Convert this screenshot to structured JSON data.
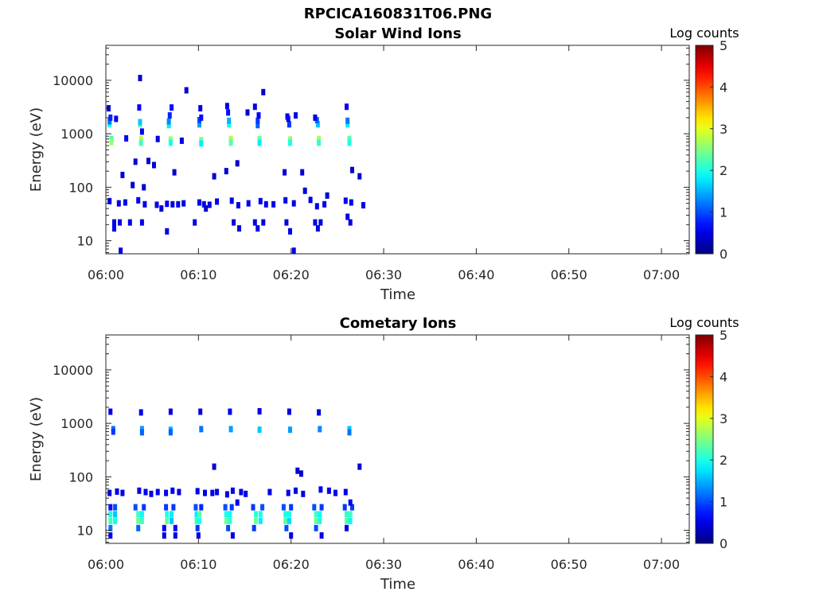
{
  "figure_title": "RPCICA160831T06.PNG",
  "chart_data": [
    {
      "type": "heatmap",
      "title": "Solar Wind Ions",
      "xlabel": "Time",
      "ylabel": "Energy (eV)",
      "y_scale": "log",
      "xlim": [
        "06:00",
        "07:03"
      ],
      "ylim": [
        5.7,
        45000
      ],
      "x_ticks": [
        "06:00",
        "06:10",
        "06:20",
        "06:30",
        "06:40",
        "06:50",
        "07:00"
      ],
      "y_ticks": [
        10,
        100,
        1000,
        10000
      ],
      "y_tick_labels": [
        "10",
        "100",
        "1000",
        "10000"
      ],
      "colorbar": {
        "label": "Log counts",
        "min": 0,
        "max": 5,
        "ticks": [
          "0",
          "1",
          "2",
          "3",
          "4",
          "5"
        ],
        "colormap": "jet"
      },
      "points": [
        [
          0.6,
          800,
          2.2
        ],
        [
          0.6,
          700,
          2.6
        ],
        [
          0.4,
          1500,
          2.0
        ],
        [
          0.4,
          1700,
          1.2
        ],
        [
          0.5,
          2000,
          0.8
        ],
        [
          0.3,
          3000,
          0.5
        ],
        [
          1.1,
          1900,
          0.6
        ],
        [
          3.8,
          800,
          2.8
        ],
        [
          3.8,
          680,
          2.2
        ],
        [
          3.7,
          1500,
          2.4
        ],
        [
          3.7,
          1650,
          1.6
        ],
        [
          3.6,
          3100,
          0.6
        ],
        [
          3.7,
          11000,
          0.4
        ],
        [
          3.9,
          1100,
          0.6
        ],
        [
          7.0,
          780,
          2.6
        ],
        [
          7.0,
          680,
          2.0
        ],
        [
          6.8,
          1450,
          1.8
        ],
        [
          6.8,
          1700,
          1.3
        ],
        [
          7.1,
          3100,
          0.7
        ],
        [
          6.9,
          2200,
          0.8
        ],
        [
          10.3,
          760,
          2.5
        ],
        [
          10.3,
          660,
          1.8
        ],
        [
          10.1,
          1500,
          1.4
        ],
        [
          10.1,
          1800,
          1.0
        ],
        [
          10.3,
          2000,
          0.7
        ],
        [
          10.2,
          3000,
          0.5
        ],
        [
          13.5,
          800,
          2.7
        ],
        [
          13.5,
          680,
          2.3
        ],
        [
          13.3,
          1500,
          2.0
        ],
        [
          13.3,
          1750,
          1.5
        ],
        [
          13.2,
          2500,
          0.7
        ],
        [
          13.1,
          3300,
          0.5
        ],
        [
          16.6,
          790,
          2.4
        ],
        [
          16.6,
          680,
          1.8
        ],
        [
          16.4,
          1450,
          1.1
        ],
        [
          16.4,
          1750,
          0.9
        ],
        [
          16.1,
          3200,
          0.5
        ],
        [
          16.5,
          2200,
          0.6
        ],
        [
          19.9,
          780,
          2.6
        ],
        [
          19.9,
          680,
          2.0
        ],
        [
          19.8,
          1500,
          0.9
        ],
        [
          19.6,
          2100,
          0.6
        ],
        [
          20.5,
          2200,
          0.5
        ],
        [
          19.7,
          1900,
          0.6
        ],
        [
          23.0,
          800,
          2.7
        ],
        [
          23.0,
          680,
          2.1
        ],
        [
          22.9,
          1500,
          1.6
        ],
        [
          22.8,
          1800,
          1.1
        ],
        [
          22.6,
          2000,
          0.5
        ],
        [
          26.3,
          800,
          2.3
        ],
        [
          26.3,
          680,
          2.0
        ],
        [
          26.1,
          1500,
          1.8
        ],
        [
          26.1,
          1750,
          1.2
        ],
        [
          26.0,
          3200,
          0.6
        ],
        [
          2.2,
          820,
          0.6
        ],
        [
          5.6,
          800,
          0.5
        ],
        [
          8.2,
          740,
          0.5
        ],
        [
          8.7,
          6500,
          0.4
        ],
        [
          17.0,
          6000,
          0.4
        ],
        [
          15.3,
          2500,
          0.4
        ],
        [
          3.2,
          300,
          0.4
        ],
        [
          4.6,
          310,
          0.4
        ],
        [
          5.2,
          260,
          0.4
        ],
        [
          7.4,
          190,
          0.4
        ],
        [
          11.7,
          160,
          0.4
        ],
        [
          13.0,
          200,
          0.4
        ],
        [
          14.2,
          280,
          0.4
        ],
        [
          19.3,
          190,
          0.4
        ],
        [
          21.2,
          190,
          0.4
        ],
        [
          26.6,
          210,
          0.4
        ],
        [
          27.4,
          160,
          0.4
        ],
        [
          2.9,
          110,
          0.4
        ],
        [
          4.1,
          100,
          0.4
        ],
        [
          1.8,
          170,
          0.4
        ],
        [
          21.5,
          86,
          0.4
        ],
        [
          23.9,
          70,
          0.4
        ],
        [
          6.0,
          40,
          0.4
        ],
        [
          10.8,
          40,
          0.4
        ],
        [
          0.4,
          55,
          0.5
        ],
        [
          1.4,
          50,
          0.5
        ],
        [
          2.1,
          52,
          0.5
        ],
        [
          3.5,
          57,
          0.5
        ],
        [
          4.2,
          48,
          0.5
        ],
        [
          5.5,
          47,
          0.5
        ],
        [
          6.6,
          49,
          0.5
        ],
        [
          7.2,
          48,
          0.5
        ],
        [
          7.8,
          48,
          0.5
        ],
        [
          8.4,
          50,
          0.5
        ],
        [
          10.1,
          52,
          0.5
        ],
        [
          10.6,
          48,
          0.5
        ],
        [
          11.2,
          47,
          0.5
        ],
        [
          12.0,
          54,
          0.5
        ],
        [
          13.6,
          56,
          0.5
        ],
        [
          14.3,
          46,
          0.5
        ],
        [
          15.4,
          50,
          0.5
        ],
        [
          16.7,
          55,
          0.5
        ],
        [
          17.3,
          48,
          0.5
        ],
        [
          18.1,
          48,
          0.5
        ],
        [
          19.4,
          57,
          0.5
        ],
        [
          20.3,
          50,
          0.5
        ],
        [
          22.1,
          58,
          0.5
        ],
        [
          22.8,
          44,
          0.5
        ],
        [
          23.6,
          48,
          0.5
        ],
        [
          25.9,
          56,
          0.5
        ],
        [
          26.5,
          52,
          0.5
        ],
        [
          27.8,
          46,
          0.5
        ],
        [
          0.9,
          22,
          0.5
        ],
        [
          0.9,
          17,
          0.5
        ],
        [
          1.5,
          22,
          0.5
        ],
        [
          2.6,
          22,
          0.5
        ],
        [
          3.9,
          22,
          0.5
        ],
        [
          6.6,
          15,
          0.5
        ],
        [
          9.6,
          22,
          0.5
        ],
        [
          13.8,
          22,
          0.5
        ],
        [
          14.4,
          17,
          0.5
        ],
        [
          16.1,
          22,
          0.5
        ],
        [
          16.4,
          17,
          0.5
        ],
        [
          17.0,
          22,
          0.5
        ],
        [
          19.5,
          22,
          0.5
        ],
        [
          19.9,
          15,
          0.5
        ],
        [
          22.6,
          22,
          0.5
        ],
        [
          22.9,
          17,
          0.5
        ],
        [
          23.2,
          22,
          0.5
        ],
        [
          26.1,
          28,
          0.5
        ],
        [
          26.4,
          22,
          0.5
        ],
        [
          1.6,
          6.5,
          0.5
        ],
        [
          20.3,
          6.5,
          0.5
        ]
      ]
    },
    {
      "type": "heatmap",
      "title": "Cometary Ions",
      "xlabel": "Time",
      "ylabel": "Energy (eV)",
      "y_scale": "log",
      "xlim": [
        "06:00",
        "07:03"
      ],
      "ylim": [
        5.7,
        45000
      ],
      "x_ticks": [
        "06:00",
        "06:10",
        "06:20",
        "06:30",
        "06:40",
        "06:50",
        "07:00"
      ],
      "y_ticks": [
        10,
        100,
        1000,
        10000
      ],
      "y_tick_labels": [
        "10",
        "100",
        "1000",
        "10000"
      ],
      "colorbar": {
        "label": "Log counts",
        "min": 0,
        "max": 5,
        "ticks": [
          "0",
          "1",
          "2",
          "3",
          "4",
          "5"
        ],
        "colormap": "jet"
      },
      "points": [
        [
          0.5,
          1650,
          0.5
        ],
        [
          0.8,
          780,
          1.2
        ],
        [
          0.8,
          700,
          0.9
        ],
        [
          3.8,
          1600,
          0.5
        ],
        [
          3.9,
          780,
          1.4
        ],
        [
          3.9,
          680,
          1.1
        ],
        [
          7.0,
          1650,
          0.5
        ],
        [
          7.0,
          760,
          1.5
        ],
        [
          7.0,
          680,
          1.1
        ],
        [
          10.2,
          1650,
          0.5
        ],
        [
          10.3,
          780,
          1.2
        ],
        [
          13.4,
          1650,
          0.6
        ],
        [
          13.5,
          780,
          1.4
        ],
        [
          16.6,
          1680,
          0.5
        ],
        [
          16.6,
          760,
          1.6
        ],
        [
          19.8,
          1650,
          0.5
        ],
        [
          19.9,
          760,
          1.4
        ],
        [
          23.0,
          1600,
          0.5
        ],
        [
          23.1,
          780,
          1.3
        ],
        [
          26.3,
          780,
          1.6
        ],
        [
          26.3,
          680,
          1.2
        ],
        [
          11.7,
          155,
          0.4
        ],
        [
          20.7,
          130,
          0.4
        ],
        [
          21.1,
          115,
          0.4
        ],
        [
          27.4,
          155,
          0.4
        ],
        [
          0.4,
          50,
          0.5
        ],
        [
          1.2,
          53,
          0.5
        ],
        [
          1.8,
          50,
          0.5
        ],
        [
          3.6,
          55,
          0.5
        ],
        [
          4.3,
          52,
          0.5
        ],
        [
          4.9,
          48,
          0.5
        ],
        [
          5.6,
          52,
          0.5
        ],
        [
          6.5,
          50,
          0.5
        ],
        [
          7.2,
          55,
          0.5
        ],
        [
          7.9,
          52,
          0.5
        ],
        [
          9.9,
          54,
          0.5
        ],
        [
          10.7,
          50,
          0.5
        ],
        [
          11.5,
          50,
          0.5
        ],
        [
          12.0,
          52,
          0.5
        ],
        [
          13.1,
          47,
          0.5
        ],
        [
          13.7,
          55,
          0.5
        ],
        [
          14.6,
          52,
          0.5
        ],
        [
          15.1,
          48,
          0.5
        ],
        [
          17.7,
          52,
          0.5
        ],
        [
          19.7,
          50,
          0.5
        ],
        [
          20.5,
          55,
          0.5
        ],
        [
          21.3,
          48,
          0.5
        ],
        [
          23.2,
          58,
          0.5
        ],
        [
          24.1,
          55,
          0.5
        ],
        [
          24.8,
          50,
          0.5
        ],
        [
          25.9,
          52,
          0.5
        ],
        [
          0.5,
          27,
          0.7
        ],
        [
          0.5,
          20,
          2.0
        ],
        [
          0.5,
          15,
          2.2
        ],
        [
          0.5,
          11,
          1.2
        ],
        [
          0.5,
          8,
          0.6
        ],
        [
          1.0,
          20,
          1.6
        ],
        [
          1.0,
          15,
          2.0
        ],
        [
          1.0,
          27,
          1.0
        ],
        [
          3.2,
          27,
          1.0
        ],
        [
          3.5,
          20,
          2.2
        ],
        [
          3.5,
          15,
          2.4
        ],
        [
          3.9,
          20,
          1.9
        ],
        [
          3.9,
          15,
          2.2
        ],
        [
          4.1,
          27,
          0.9
        ],
        [
          3.5,
          11,
          1.1
        ],
        [
          6.5,
          27,
          0.9
        ],
        [
          6.6,
          20,
          2.0
        ],
        [
          6.6,
          15,
          2.3
        ],
        [
          7.1,
          20,
          1.8
        ],
        [
          7.1,
          15,
          1.6
        ],
        [
          7.3,
          27,
          0.9
        ],
        [
          6.3,
          11,
          0.6
        ],
        [
          6.3,
          8,
          0.5
        ],
        [
          7.5,
          8,
          0.5
        ],
        [
          7.5,
          11,
          0.6
        ],
        [
          9.7,
          27,
          1.0
        ],
        [
          9.8,
          20,
          1.8
        ],
        [
          9.8,
          15,
          2.1
        ],
        [
          10.1,
          20,
          2.3
        ],
        [
          10.1,
          15,
          2.0
        ],
        [
          10.3,
          27,
          0.8
        ],
        [
          9.9,
          11,
          0.9
        ],
        [
          10.0,
          8,
          0.5
        ],
        [
          12.9,
          27,
          1.0
        ],
        [
          13.0,
          20,
          2.0
        ],
        [
          13.0,
          15,
          2.4
        ],
        [
          13.4,
          20,
          1.9
        ],
        [
          13.4,
          15,
          2.1
        ],
        [
          13.6,
          27,
          0.9
        ],
        [
          13.2,
          11,
          1.0
        ],
        [
          13.7,
          8,
          0.5
        ],
        [
          14.2,
          33,
          0.6
        ],
        [
          15.9,
          27,
          0.9
        ],
        [
          16.2,
          20,
          2.1
        ],
        [
          16.2,
          15,
          2.4
        ],
        [
          16.7,
          20,
          2.0
        ],
        [
          16.7,
          15,
          1.8
        ],
        [
          16.9,
          27,
          1.0
        ],
        [
          16.0,
          11,
          0.9
        ],
        [
          19.2,
          27,
          1.0
        ],
        [
          19.4,
          20,
          2.0
        ],
        [
          19.4,
          15,
          2.3
        ],
        [
          19.8,
          20,
          2.0
        ],
        [
          19.8,
          15,
          1.7
        ],
        [
          20.0,
          27,
          0.9
        ],
        [
          19.5,
          11,
          1.0
        ],
        [
          20.0,
          8,
          0.5
        ],
        [
          22.5,
          27,
          1.0
        ],
        [
          22.7,
          20,
          2.2
        ],
        [
          22.7,
          15,
          2.4
        ],
        [
          23.1,
          20,
          1.9
        ],
        [
          23.1,
          15,
          2.0
        ],
        [
          23.3,
          27,
          0.9
        ],
        [
          22.7,
          11,
          1.0
        ],
        [
          23.3,
          8,
          0.5
        ],
        [
          25.8,
          27,
          0.9
        ],
        [
          26.0,
          20,
          2.1
        ],
        [
          26.0,
          15,
          2.3
        ],
        [
          26.4,
          20,
          2.2
        ],
        [
          26.4,
          15,
          1.9
        ],
        [
          26.6,
          27,
          0.9
        ],
        [
          26.4,
          33,
          0.6
        ],
        [
          26.0,
          11,
          0.5
        ]
      ]
    }
  ]
}
